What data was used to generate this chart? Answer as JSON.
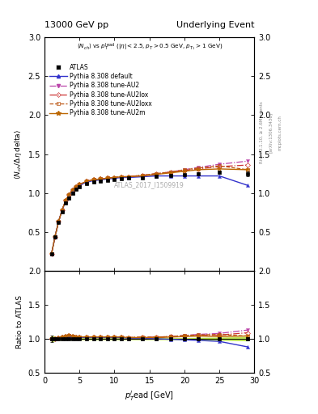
{
  "title_left": "13000 GeV pp",
  "title_right": "Underlying Event",
  "ylabel_main": "⟨N_{ch}/Δη delta⟩",
  "ylabel_ratio": "Ratio to ATLAS",
  "xlabel": "p_{T}^{l}ead [GeV]",
  "watermark": "ATLAS_2017_I1509919",
  "rivet_label": "Rivet 3.1.10, ≥ 2.6M events",
  "arxiv_label": "[arXiv:1306.3436]",
  "mcplots_label": "mcplots.cern.ch",
  "xlim": [
    0,
    30
  ],
  "ylim_main": [
    0,
    3.0
  ],
  "ylim_ratio": [
    0.5,
    2.0
  ],
  "yticks_main": [
    0.5,
    1.0,
    1.5,
    2.0,
    2.5,
    3.0
  ],
  "yticks_ratio": [
    0.5,
    1.0,
    1.5,
    2.0
  ],
  "xticks": [
    0,
    5,
    10,
    15,
    20,
    25,
    30
  ],
  "atlas_x": [
    1.0,
    1.5,
    2.0,
    2.5,
    3.0,
    3.5,
    4.0,
    4.5,
    5.0,
    6.0,
    7.0,
    8.0,
    9.0,
    10.0,
    11.0,
    12.0,
    14.0,
    16.0,
    18.0,
    20.0,
    22.0,
    25.0,
    29.0
  ],
  "atlas_y": [
    0.22,
    0.44,
    0.62,
    0.76,
    0.87,
    0.94,
    1.0,
    1.05,
    1.08,
    1.12,
    1.14,
    1.15,
    1.16,
    1.17,
    1.18,
    1.19,
    1.2,
    1.22,
    1.23,
    1.24,
    1.25,
    1.27,
    1.25
  ],
  "atlas_yerr": [
    0.01,
    0.01,
    0.01,
    0.01,
    0.01,
    0.01,
    0.01,
    0.01,
    0.01,
    0.01,
    0.01,
    0.01,
    0.01,
    0.01,
    0.01,
    0.01,
    0.01,
    0.01,
    0.01,
    0.01,
    0.015,
    0.02,
    0.03
  ],
  "default_x": [
    1.0,
    1.5,
    2.0,
    2.5,
    3.0,
    3.5,
    4.0,
    4.5,
    5.0,
    6.0,
    7.0,
    8.0,
    9.0,
    10.0,
    11.0,
    12.0,
    14.0,
    16.0,
    18.0,
    20.0,
    22.0,
    25.0,
    29.0
  ],
  "default_y": [
    0.22,
    0.44,
    0.63,
    0.78,
    0.89,
    0.97,
    1.03,
    1.07,
    1.1,
    1.14,
    1.16,
    1.17,
    1.18,
    1.19,
    1.2,
    1.2,
    1.21,
    1.22,
    1.22,
    1.22,
    1.22,
    1.22,
    1.1
  ],
  "au2_x": [
    1.0,
    1.5,
    2.0,
    2.5,
    3.0,
    3.5,
    4.0,
    4.5,
    5.0,
    6.0,
    7.0,
    8.0,
    9.0,
    10.0,
    11.0,
    12.0,
    14.0,
    16.0,
    18.0,
    20.0,
    22.0,
    25.0,
    29.0
  ],
  "au2_y": [
    0.22,
    0.44,
    0.63,
    0.78,
    0.9,
    0.98,
    1.04,
    1.08,
    1.11,
    1.15,
    1.17,
    1.18,
    1.19,
    1.2,
    1.21,
    1.21,
    1.22,
    1.24,
    1.27,
    1.3,
    1.33,
    1.37,
    1.41
  ],
  "au2lox_x": [
    1.0,
    1.5,
    2.0,
    2.5,
    3.0,
    3.5,
    4.0,
    4.5,
    5.0,
    6.0,
    7.0,
    8.0,
    9.0,
    10.0,
    11.0,
    12.0,
    14.0,
    16.0,
    18.0,
    20.0,
    22.0,
    25.0,
    29.0
  ],
  "au2lox_y": [
    0.22,
    0.44,
    0.63,
    0.78,
    0.9,
    0.98,
    1.04,
    1.08,
    1.11,
    1.15,
    1.17,
    1.18,
    1.19,
    1.2,
    1.21,
    1.21,
    1.23,
    1.25,
    1.27,
    1.29,
    1.31,
    1.34,
    1.36
  ],
  "au2loxx_x": [
    1.0,
    1.5,
    2.0,
    2.5,
    3.0,
    3.5,
    4.0,
    4.5,
    5.0,
    6.0,
    7.0,
    8.0,
    9.0,
    10.0,
    11.0,
    12.0,
    14.0,
    16.0,
    18.0,
    20.0,
    22.0,
    25.0,
    29.0
  ],
  "au2loxx_y": [
    0.22,
    0.44,
    0.63,
    0.78,
    0.9,
    0.98,
    1.04,
    1.08,
    1.11,
    1.15,
    1.17,
    1.18,
    1.19,
    1.2,
    1.21,
    1.21,
    1.23,
    1.25,
    1.27,
    1.3,
    1.32,
    1.35,
    1.3
  ],
  "au2m_x": [
    1.0,
    1.5,
    2.0,
    2.5,
    3.0,
    3.5,
    4.0,
    4.5,
    5.0,
    6.0,
    7.0,
    8.0,
    9.0,
    10.0,
    11.0,
    12.0,
    14.0,
    16.0,
    18.0,
    20.0,
    22.0,
    25.0,
    29.0
  ],
  "au2m_y": [
    0.22,
    0.44,
    0.63,
    0.78,
    0.9,
    0.98,
    1.04,
    1.08,
    1.11,
    1.15,
    1.17,
    1.18,
    1.19,
    1.2,
    1.21,
    1.21,
    1.22,
    1.24,
    1.26,
    1.28,
    1.3,
    1.31,
    1.3
  ],
  "color_default": "#3333cc",
  "color_au2": "#bb44aa",
  "color_au2lox": "#cc3333",
  "color_au2loxx": "#bb5511",
  "color_au2m": "#bb6600",
  "color_atlas": "#000000",
  "shade_color": "#aadd22"
}
